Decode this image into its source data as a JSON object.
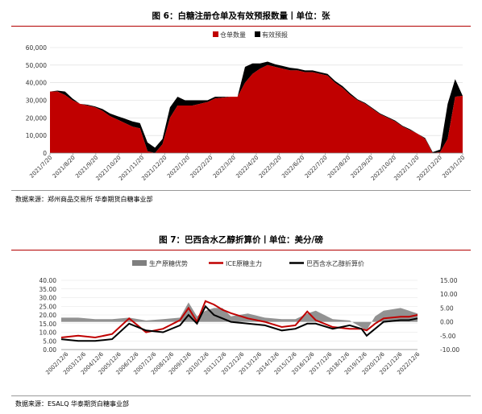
{
  "figures": [
    {
      "title": "图 6：白糖注册仓单及有效预报数量丨单位：张",
      "source": "数据来源：郑州商品交易所  华泰期货白糖事业部"
    },
    {
      "title": "图 7：巴西含水乙醇折算价丨单位：美分/磅",
      "source": "数据来源：ESALQ  华泰期货白糖事业部"
    }
  ],
  "chart_data": [
    {
      "type": "area",
      "title": "",
      "stacked": true,
      "legend_position": "top-center",
      "colors": {
        "仓单数量": "#c00000",
        "有效预报": "#000000"
      },
      "x": [
        "2021/7/20",
        "2021/7/30",
        "2021/8/10",
        "2021/8/20",
        "2021/8/31",
        "2021/9/10",
        "2021/9/20",
        "2021/9/30",
        "2021/10/10",
        "2021/10/20",
        "2021/10/31",
        "2021/11/10",
        "2021/11/20",
        "2021/11/25",
        "2021/11/30",
        "2021/12/10",
        "2021/12/20",
        "2021/12/31",
        "2022/1/10",
        "2022/1/20",
        "2022/1/31",
        "2022/2/10",
        "2022/2/20",
        "2022/2/28",
        "2022/3/10",
        "2022/3/20",
        "2022/3/31",
        "2022/4/10",
        "2022/4/20",
        "2022/4/30",
        "2022/5/10",
        "2022/5/20",
        "2022/5/31",
        "2022/6/10",
        "2022/6/20",
        "2022/6/30",
        "2022/7/10",
        "2022/7/20",
        "2022/7/31",
        "2022/8/10",
        "2022/8/20",
        "2022/8/31",
        "2022/9/10",
        "2022/9/20",
        "2022/9/30",
        "2022/10/10",
        "2022/10/20",
        "2022/10/31",
        "2022/11/10",
        "2022/11/20",
        "2022/11/30",
        "2022/12/10",
        "2022/12/20",
        "2022/12/31",
        "2023/1/10",
        "2023/1/20"
      ],
      "series": [
        {
          "name": "仓单数量",
          "values": [
            35000,
            35000,
            33000,
            30000,
            28000,
            27000,
            26000,
            24000,
            21000,
            19000,
            17000,
            15000,
            14000,
            1000,
            0,
            5000,
            20000,
            27000,
            27000,
            27000,
            28000,
            29000,
            31000,
            31500,
            32000,
            32000,
            40000,
            45000,
            48000,
            50000,
            49000,
            48000,
            47000,
            47000,
            46000,
            46000,
            45000,
            44000,
            40000,
            37000,
            33000,
            30000,
            28000,
            25000,
            22000,
            20000,
            18000,
            15000,
            13000,
            11000,
            8000,
            0,
            500,
            8000,
            32000,
            32500
          ]
        },
        {
          "name": "有效预报",
          "values": [
            0,
            500,
            2000,
            1000,
            0,
            500,
            500,
            1000,
            1500,
            2000,
            2500,
            3000,
            3000,
            5000,
            3000,
            3000,
            6000,
            5000,
            3000,
            3000,
            2000,
            1000,
            1000,
            500,
            0,
            0,
            9000,
            6000,
            3000,
            2000,
            1500,
            1500,
            1500,
            1000,
            1000,
            1000,
            1000,
            1000,
            1000,
            1000,
            1000,
            500,
            500,
            500,
            500,
            500,
            500,
            500,
            500,
            0,
            500,
            500,
            1500,
            20000,
            10000,
            0
          ]
        }
      ],
      "ylim": [
        0,
        60000
      ],
      "yticks": [
        "0",
        "10,000",
        "20,000",
        "30,000",
        "40,000",
        "50,000",
        "60,000"
      ],
      "xticks": [
        "2021/7/20",
        "2021/8/20",
        "2021/9/20",
        "2021/10/20",
        "2021/11/20",
        "2021/12/20",
        "2022/1/20",
        "2022/2/20",
        "2022/3/20",
        "2022/4/20",
        "2022/5/20",
        "2022/6/20",
        "2022/7/20",
        "2022/8/20",
        "2022/9/20",
        "2022/10/20",
        "2022/11/20",
        "2022/12/20",
        "2023/1/20"
      ]
    },
    {
      "type": "line",
      "title": "",
      "legend_position": "top-center",
      "grid": true,
      "x": [
        2002,
        2003,
        2004,
        2005,
        2006,
        2007,
        2008,
        2009,
        2009.5,
        2010,
        2010.5,
        2011,
        2011.5,
        2012,
        2013,
        2014,
        2015,
        2015.8,
        2016.5,
        2017,
        2018,
        2019,
        2019.7,
        2020,
        2020.5,
        2021,
        2022,
        2022.5,
        2023
      ],
      "series": [
        {
          "name": "生产原糖优势",
          "type": "area",
          "axis": "right",
          "color": "#7f7f7f",
          "values": [
            1.5,
            1.5,
            1.0,
            1.0,
            1.5,
            0.5,
            1.0,
            1.5,
            7.0,
            2.0,
            4.0,
            5.0,
            5.0,
            2.0,
            3.0,
            1.5,
            1.0,
            1.0,
            3.0,
            4.0,
            1.0,
            0.5,
            -2.0,
            -3.0,
            2.0,
            4.0,
            5.0,
            4.0,
            3.0
          ]
        },
        {
          "name": "ICE原糖主力",
          "type": "line",
          "axis": "left",
          "color": "#c00000",
          "values": [
            7,
            8,
            7,
            9,
            18,
            10,
            12,
            17,
            24,
            16,
            28,
            26,
            23,
            21,
            18,
            16,
            13,
            14,
            22,
            17,
            13,
            12,
            12,
            11,
            15,
            18,
            19,
            19,
            20
          ]
        },
        {
          "name": "巴西含水乙醇折算价",
          "type": "line",
          "axis": "left",
          "color": "#000000",
          "values": [
            6,
            5,
            5,
            6,
            15,
            11,
            10,
            14,
            20,
            15,
            25,
            20,
            18,
            16,
            15,
            14,
            11,
            12,
            15,
            15,
            12,
            14,
            12,
            8,
            12,
            16,
            17,
            17,
            18
          ]
        }
      ],
      "ylim_left": [
        0,
        40
      ],
      "ylim_right": [
        -10,
        15
      ],
      "yticks_left": [
        "0.00",
        "5.00",
        "10.00",
        "15.00",
        "20.00",
        "25.00",
        "30.00",
        "35.00",
        "40.00"
      ],
      "yticks_right": [
        "-10.00",
        "-5.00",
        "0.00",
        "5.00",
        "10.00",
        "15.00"
      ],
      "xticks": [
        "2002/12/6",
        "2003/12/6",
        "2004/12/6",
        "2005/12/6",
        "2006/12/6",
        "2007/12/6",
        "2008/12/6",
        "2009/12/6",
        "2010/12/6",
        "2011/12/6",
        "2012/12/6",
        "2013/12/6",
        "2014/12/6",
        "2015/12/6",
        "2016/12/6",
        "2017/12/6",
        "2018/12/6",
        "2019/12/6",
        "2020/12/6",
        "2021/12/6",
        "2022/12/6"
      ]
    }
  ]
}
